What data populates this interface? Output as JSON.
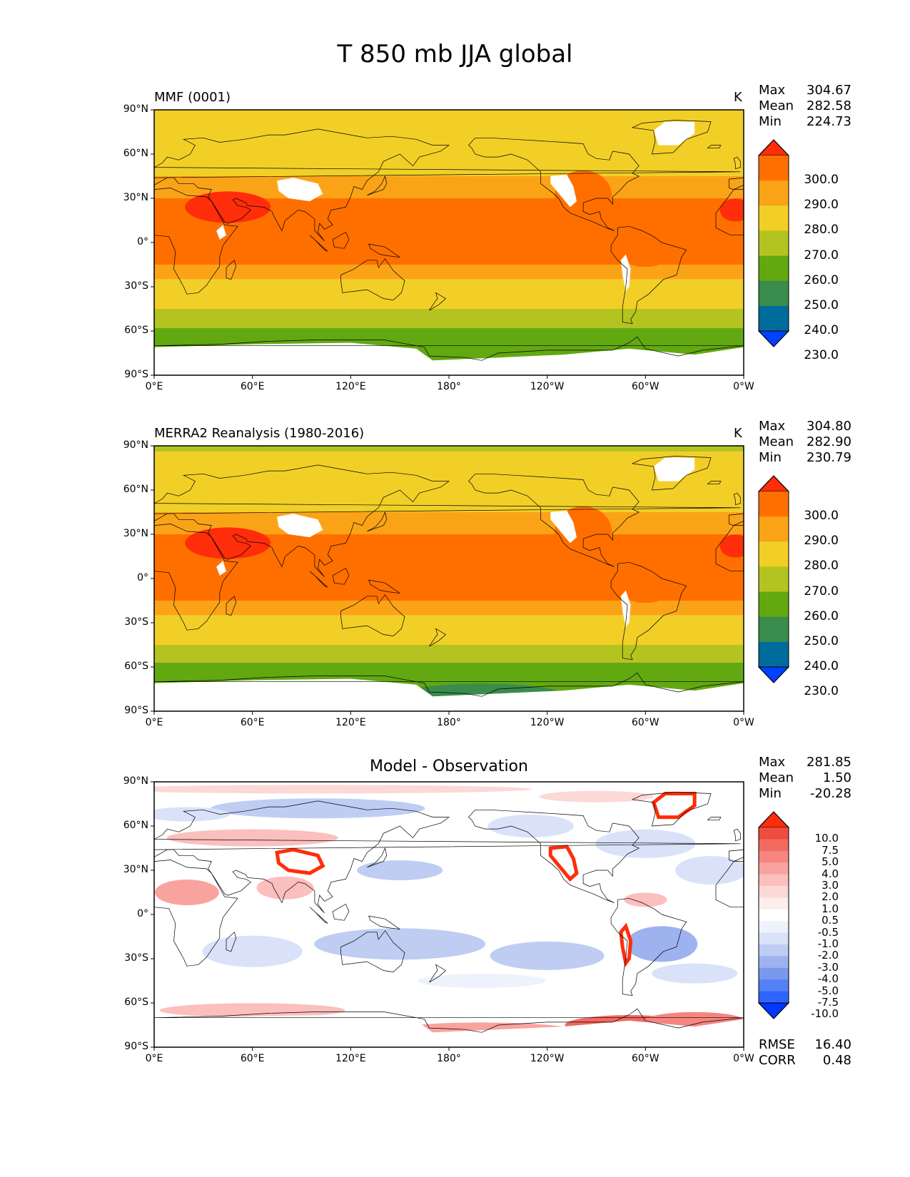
{
  "title": "T 850 mb JJA global",
  "lat_ticks": [
    "90°N",
    "60°N",
    "30°N",
    "0°",
    "30°S",
    "60°S",
    "90°S"
  ],
  "lon_ticks": [
    "0°E",
    "60°E",
    "120°E",
    "180°",
    "120°W",
    "60°W",
    "0°W"
  ],
  "colors": {
    "abs_levels": [
      "#0041ff",
      "#006c9b",
      "#3a8c4c",
      "#62a811",
      "#b4c31f",
      "#f2cf27",
      "#fba317",
      "#ff6f00",
      "#ff2d0a"
    ],
    "diff_levels": [
      "#0037ff",
      "#2f65ff",
      "#5581f5",
      "#7a98ec",
      "#9eb2ef",
      "#bfcdf3",
      "#d9e2f8",
      "#eef2fc",
      "#ffffff",
      "#fdeeee",
      "#fcd8d7",
      "#fbbfbd",
      "#f9a39f",
      "#f6857f",
      "#f2695f",
      "#ee4c3f",
      "#ff2d0a"
    ],
    "land": "#000000",
    "missing": "#ffffff"
  },
  "panels": [
    {
      "label": "MMF (0001)",
      "units": "K",
      "stats": {
        "max_label": "Max",
        "max": "304.67",
        "mean_label": "Mean",
        "mean": "282.58",
        "min_label": "Min",
        "min": "224.73"
      },
      "colorbar_labels": [
        "300.0",
        "290.0",
        "280.0",
        "270.0",
        "260.0",
        "250.0",
        "240.0",
        "230.0"
      ]
    },
    {
      "label": "MERRA2 Reanalysis (1980-2016)",
      "units": "K",
      "stats": {
        "max_label": "Max",
        "max": "304.80",
        "mean_label": "Mean",
        "mean": "282.90",
        "min_label": "Min",
        "min": "230.79"
      },
      "colorbar_labels": [
        "300.0",
        "290.0",
        "280.0",
        "270.0",
        "260.0",
        "250.0",
        "240.0",
        "230.0"
      ]
    },
    {
      "label": "Model - Observation",
      "stats": {
        "max_label": "Max",
        "max": "281.85",
        "mean_label": "Mean",
        "mean": "1.50",
        "min_label": "Min",
        "min": "-20.28"
      },
      "colorbar_labels": [
        "10.0",
        "7.5",
        "5.0",
        "4.0",
        "3.0",
        "2.0",
        "1.0",
        "0.5",
        "-0.5",
        "-1.0",
        "-2.0",
        "-3.0",
        "-4.0",
        "-5.0",
        "-7.5",
        "-10.0"
      ],
      "metrics": {
        "rmse_label": "RMSE",
        "rmse": "16.40",
        "corr_label": "CORR",
        "corr": "0.48"
      }
    }
  ]
}
